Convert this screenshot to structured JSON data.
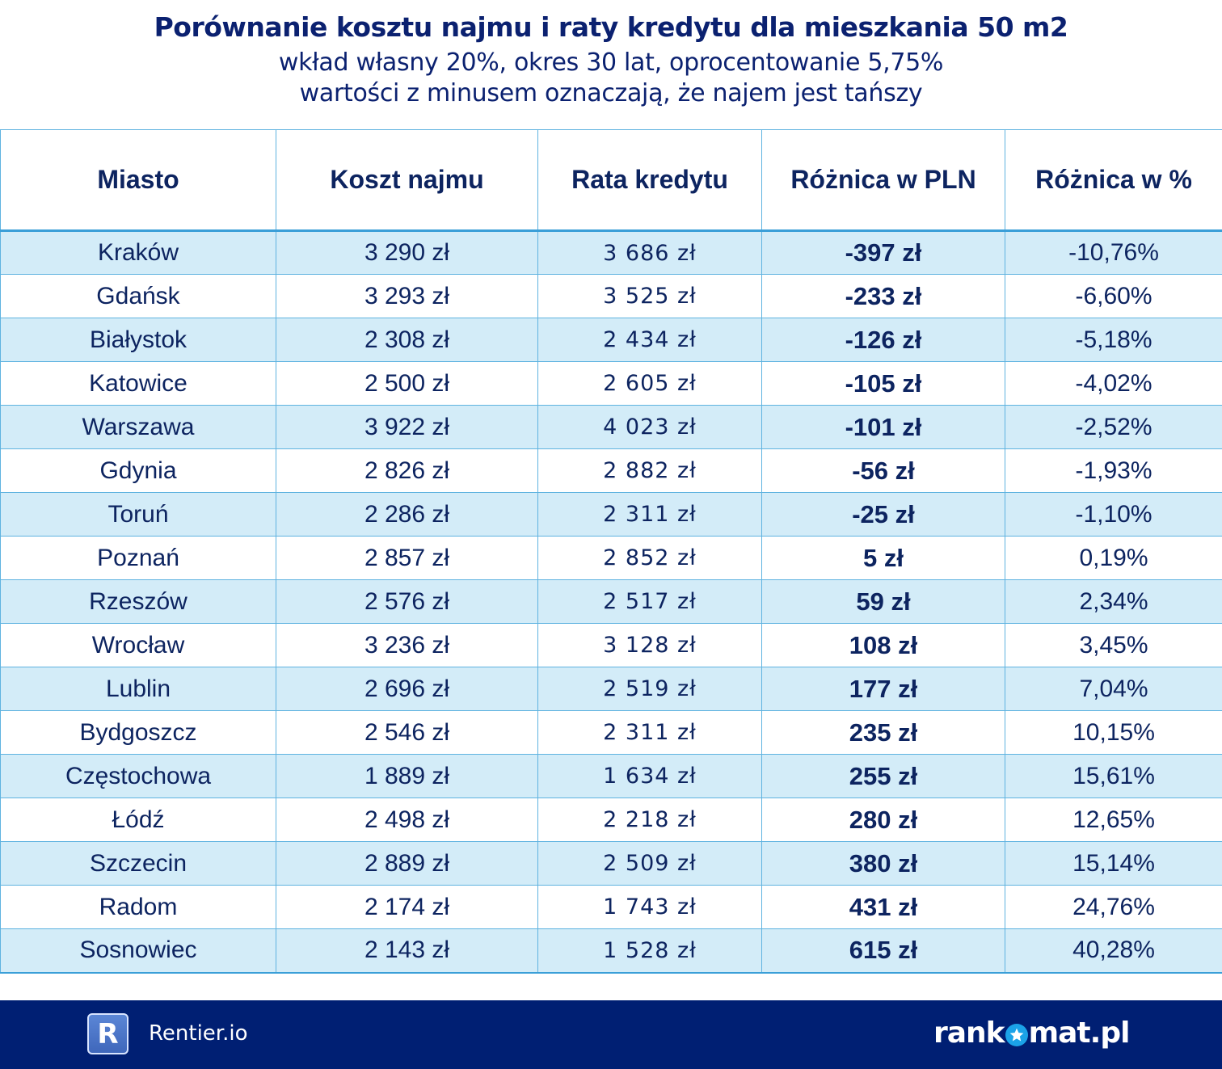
{
  "header": {
    "title": "Porównanie kosztu najmu i raty kredytu dla mieszkania 50 m2",
    "subtitle_line1": "wkład własny 20%, okres 30 lat, oprocentowanie 5,75%",
    "subtitle_line2": "wartości z minusem oznaczają, że najem jest tańszy"
  },
  "table": {
    "columns": [
      "Miasto",
      "Koszt najmu",
      "Rata kredytu",
      "Różnica w PLN",
      "Różnica w %"
    ],
    "rows": [
      {
        "city": "Kraków",
        "rent": "3 290 zł",
        "loan": "3 686 zł",
        "diff_pln": "-397 zł",
        "diff_pct": "-10,76%"
      },
      {
        "city": "Gdańsk",
        "rent": "3 293 zł",
        "loan": "3 525 zł",
        "diff_pln": "-233 zł",
        "diff_pct": "-6,60%"
      },
      {
        "city": "Białystok",
        "rent": "2 308 zł",
        "loan": "2 434 zł",
        "diff_pln": "-126 zł",
        "diff_pct": "-5,18%"
      },
      {
        "city": "Katowice",
        "rent": "2 500 zł",
        "loan": "2 605 zł",
        "diff_pln": "-105 zł",
        "diff_pct": "-4,02%"
      },
      {
        "city": "Warszawa",
        "rent": "3 922 zł",
        "loan": "4 023 zł",
        "diff_pln": "-101 zł",
        "diff_pct": "-2,52%"
      },
      {
        "city": "Gdynia",
        "rent": "2 826 zł",
        "loan": "2 882 zł",
        "diff_pln": "-56 zł",
        "diff_pct": "-1,93%"
      },
      {
        "city": "Toruń",
        "rent": "2 286 zł",
        "loan": "2 311 zł",
        "diff_pln": "-25 zł",
        "diff_pct": "-1,10%"
      },
      {
        "city": "Poznań",
        "rent": "2 857 zł",
        "loan": "2 852 zł",
        "diff_pln": "5 zł",
        "diff_pct": "0,19%"
      },
      {
        "city": "Rzeszów",
        "rent": "2 576 zł",
        "loan": "2 517 zł",
        "diff_pln": "59 zł",
        "diff_pct": "2,34%"
      },
      {
        "city": "Wrocław",
        "rent": "3 236 zł",
        "loan": "3 128 zł",
        "diff_pln": "108 zł",
        "diff_pct": "3,45%"
      },
      {
        "city": "Lublin",
        "rent": "2 696 zł",
        "loan": "2 519 zł",
        "diff_pln": "177 zł",
        "diff_pct": "7,04%"
      },
      {
        "city": "Bydgoszcz",
        "rent": "2 546 zł",
        "loan": "2 311 zł",
        "diff_pln": "235 zł",
        "diff_pct": "10,15%"
      },
      {
        "city": "Częstochowa",
        "rent": "1 889 zł",
        "loan": "1 634 zł",
        "diff_pln": "255 zł",
        "diff_pct": "15,61%"
      },
      {
        "city": "Łódź",
        "rent": "2 498 zł",
        "loan": "2 218 zł",
        "diff_pln": "280 zł",
        "diff_pct": "12,65%"
      },
      {
        "city": "Szczecin",
        "rent": "2 889 zł",
        "loan": "2 509 zł",
        "diff_pln": "380 zł",
        "diff_pct": "15,14%"
      },
      {
        "city": "Radom",
        "rent": "2 174 zł",
        "loan": "1 743 zł",
        "diff_pln": "431 zł",
        "diff_pct": "24,76%"
      },
      {
        "city": "Sosnowiec",
        "rent": "2 143 zł",
        "loan": "1 528 zł",
        "diff_pln": "615 zł",
        "diff_pct": "40,28%"
      }
    ]
  },
  "footer": {
    "left_logo_letter": "R",
    "left_brand": "Rentier.io",
    "right_brand_prefix": "rank",
    "right_brand_suffix": "mat.pl"
  },
  "colors": {
    "title": "#0b2170",
    "text": "#0d2460",
    "row_alt": "#d3ecf8",
    "grid": "#5fb3e0",
    "footer_bg": "#001f73",
    "star_accent": "#1ba3e8"
  },
  "chart_data": {
    "type": "table",
    "title": "Porównanie kosztu najmu i raty kredytu dla mieszkania 50 m2",
    "subtitle": "wkład własny 20%, okres 30 lat, oprocentowanie 5,75%; wartości z minusem oznaczają, że najem jest tańszy",
    "columns": [
      "Miasto",
      "Koszt najmu",
      "Rata kredytu",
      "Różnica w PLN",
      "Różnica w %"
    ],
    "categories": [
      "Kraków",
      "Gdańsk",
      "Białystok",
      "Katowice",
      "Warszawa",
      "Gdynia",
      "Toruń",
      "Poznań",
      "Rzeszów",
      "Wrocław",
      "Lublin",
      "Bydgoszcz",
      "Częstochowa",
      "Łódź",
      "Szczecin",
      "Radom",
      "Sosnowiec"
    ],
    "series": [
      {
        "name": "Koszt najmu (zł)",
        "values": [
          3290,
          3293,
          2308,
          2500,
          3922,
          2826,
          2286,
          2857,
          2576,
          3236,
          2696,
          2546,
          1889,
          2498,
          2889,
          2174,
          2143
        ]
      },
      {
        "name": "Rata kredytu (zł)",
        "values": [
          3686,
          3525,
          2434,
          2605,
          4023,
          2882,
          2311,
          2852,
          2517,
          3128,
          2519,
          2311,
          1634,
          2218,
          2509,
          1743,
          1528
        ]
      },
      {
        "name": "Różnica w PLN (zł)",
        "values": [
          -397,
          -233,
          -126,
          -105,
          -101,
          -56,
          -25,
          5,
          59,
          108,
          177,
          235,
          255,
          280,
          380,
          431,
          615
        ]
      },
      {
        "name": "Różnica w %",
        "values": [
          -10.76,
          -6.6,
          -5.18,
          -4.02,
          -2.52,
          -1.93,
          -1.1,
          0.19,
          2.34,
          3.45,
          7.04,
          10.15,
          15.61,
          12.65,
          15.14,
          24.76,
          40.28
        ]
      }
    ]
  }
}
